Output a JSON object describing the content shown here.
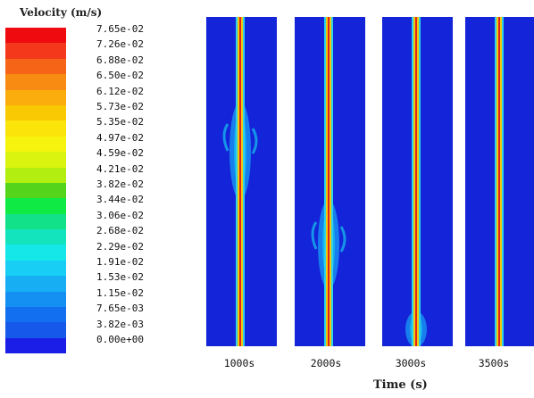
{
  "legend": {
    "title": "Velocity (m/s)",
    "ticks": [
      "7.65e-02",
      "7.26e-02",
      "6.88e-02",
      "6.50e-02",
      "6.12e-02",
      "5.73e-02",
      "5.35e-02",
      "4.97e-02",
      "4.59e-02",
      "4.21e-02",
      "3.82e-02",
      "3.44e-02",
      "3.06e-02",
      "2.68e-02",
      "2.29e-02",
      "1.91e-02",
      "1.53e-02",
      "1.15e-02",
      "7.65e-03",
      "3.82e-03",
      "0.00e+00"
    ],
    "colors": [
      "#ee0a0f",
      "#f4381c",
      "#f66417",
      "#f88c12",
      "#faad0c",
      "#f9c904",
      "#fae40a",
      "#f6f40d",
      "#dbf40f",
      "#b2ef10",
      "#54d41b",
      "#10ea45",
      "#13e18a",
      "#14e4be",
      "#15e6e8",
      "#18cef4",
      "#18aef4",
      "#1390f2",
      "#1270f0",
      "#1558ea",
      "#1a1ee6"
    ]
  },
  "panels": [
    {
      "label": "1000s",
      "plume": "upper"
    },
    {
      "label": "2000s",
      "plume": "middle"
    },
    {
      "label": "3000s",
      "plume": "lower"
    },
    {
      "label": "3500s",
      "plume": "none"
    }
  ],
  "x_axis_label": "Time (s)"
}
